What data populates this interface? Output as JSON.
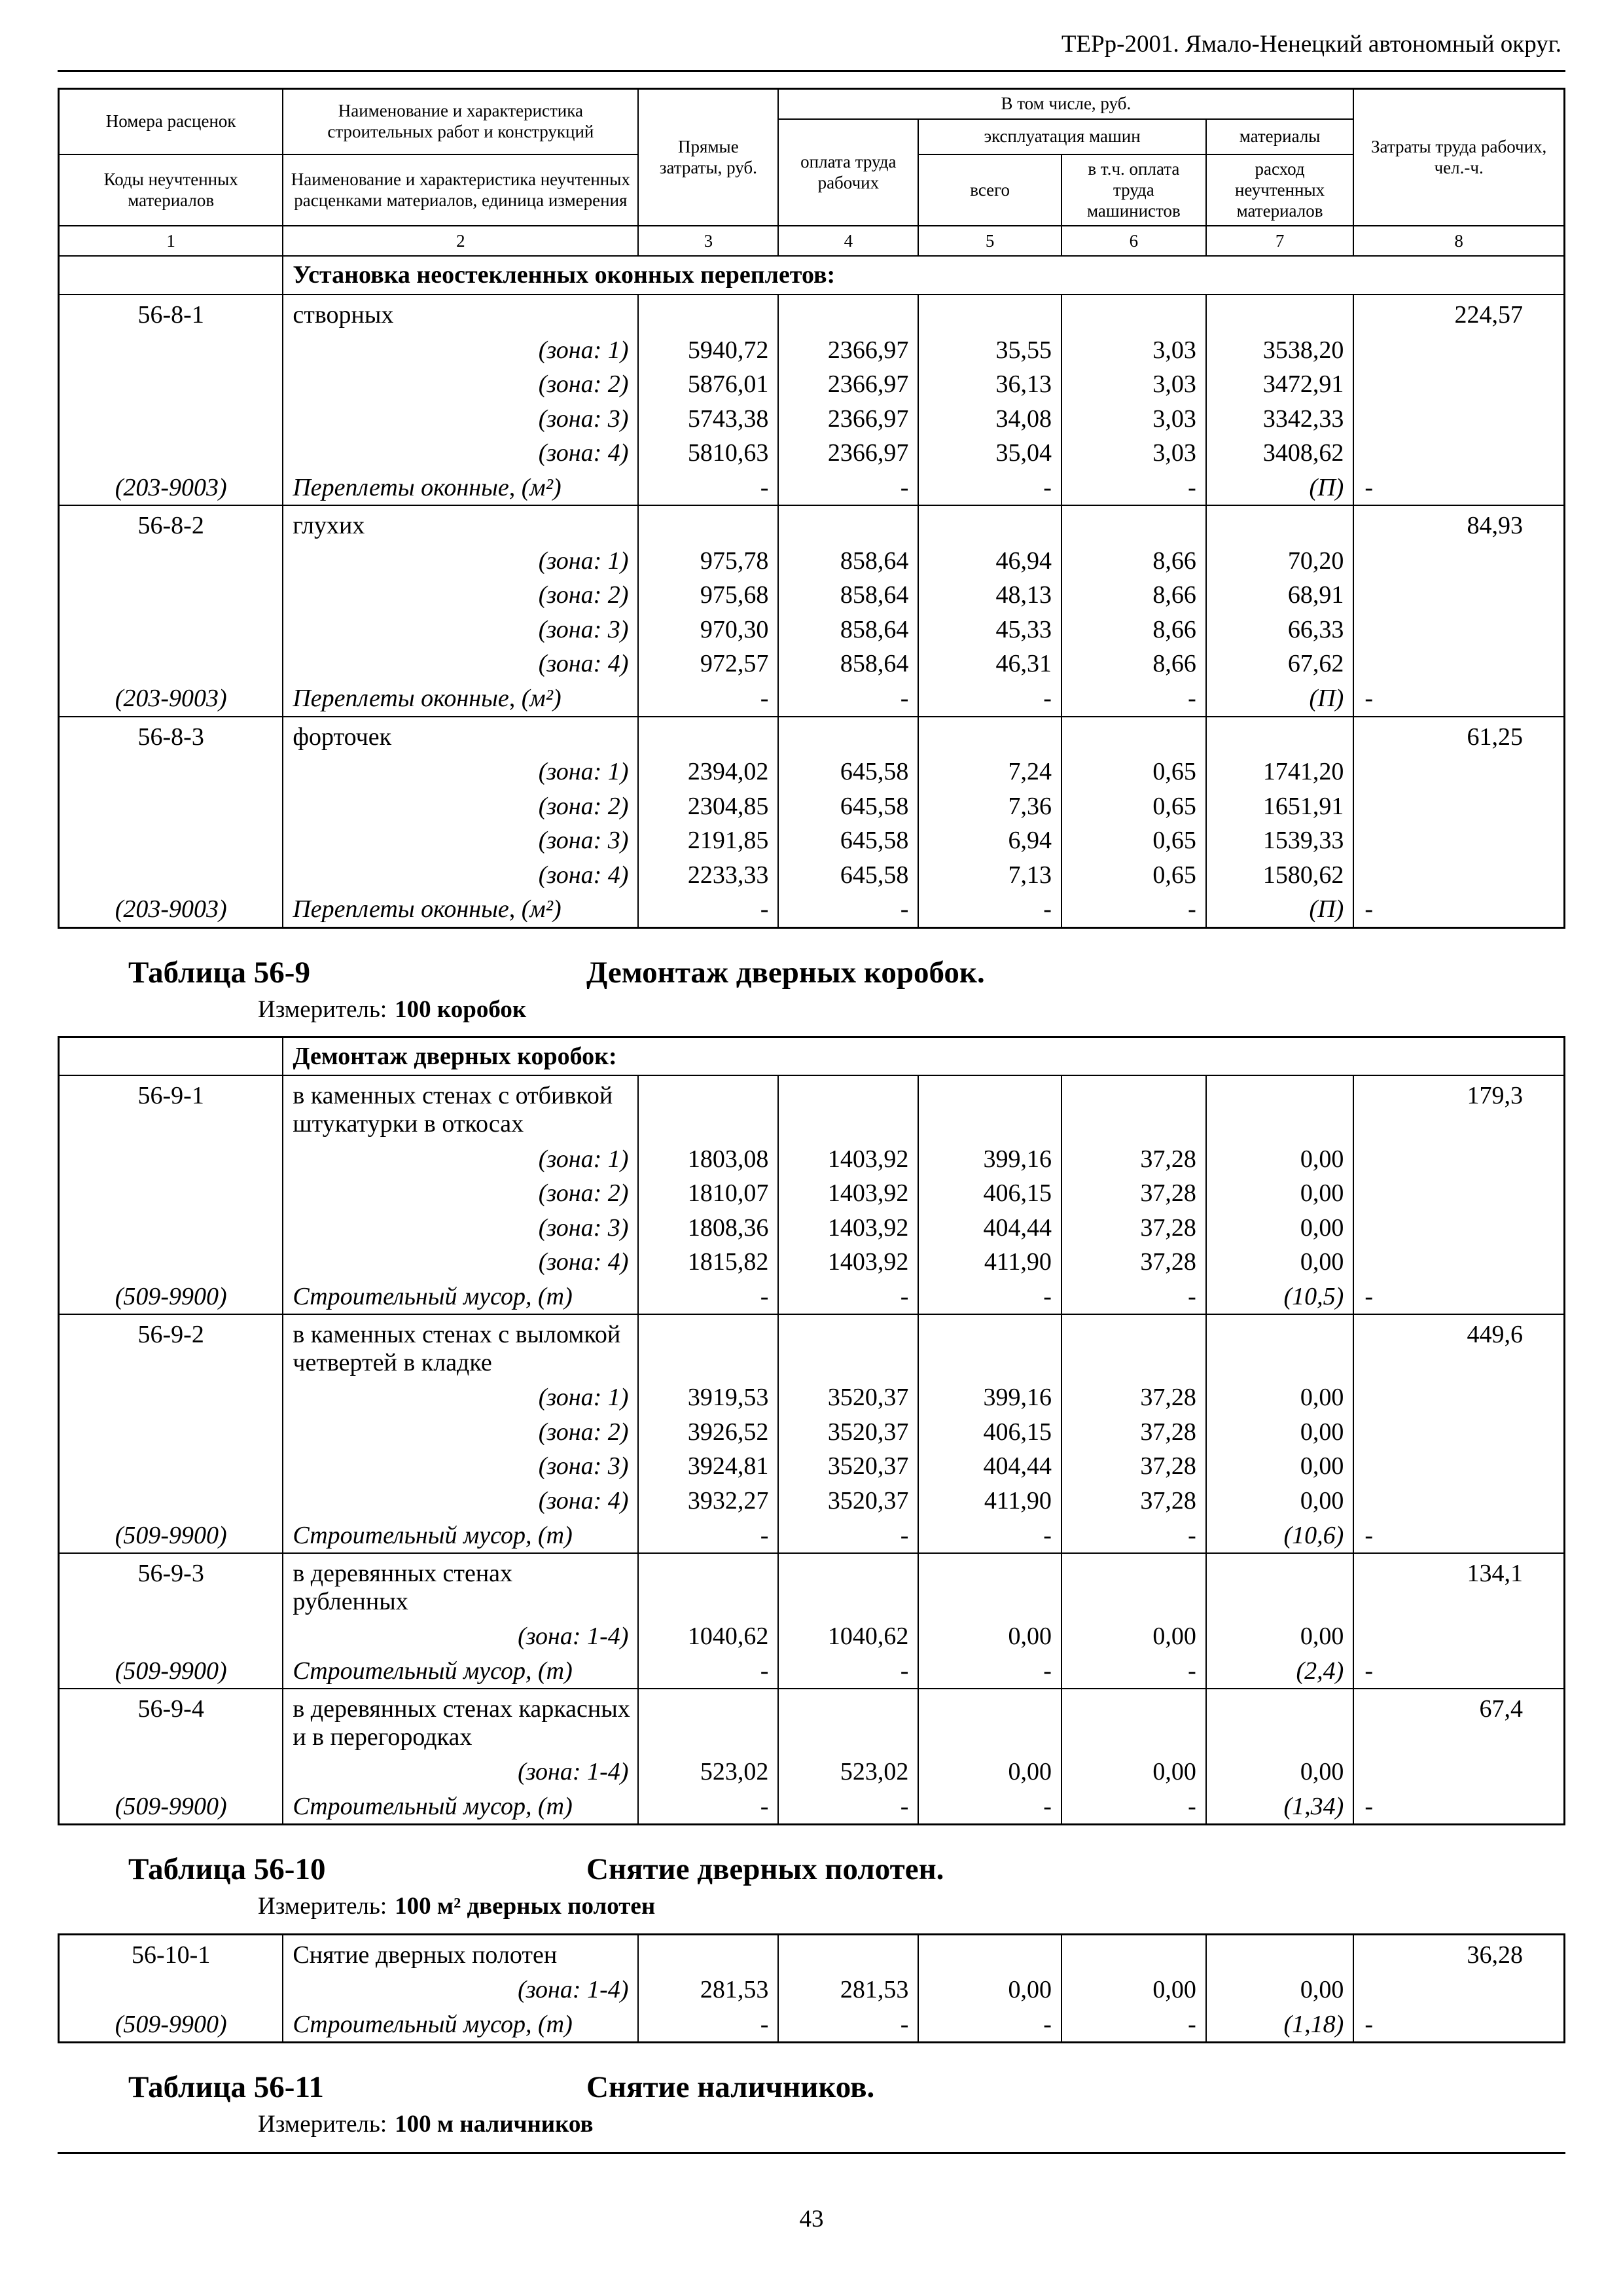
{
  "page": {
    "header_text": "ТЕРр-2001.  Ямало-Ненецкий автономный округ.",
    "page_number": "43"
  },
  "table_header": {
    "in_total": "В том числе, руб.",
    "col_rate_number": "Номера расценок",
    "col_rate_codes": "Коды неучтенных материалов",
    "col_work_name": "Наименование и характеристика строительных работ и конструкций",
    "col_material_name": "Наименование и характеристика неучтенных расценками материалов, единица измерения",
    "col_direct_costs": "Прямые затраты, руб.",
    "col_labor_pay": "оплата труда рабочих",
    "col_machines": "эксплуатация машин",
    "col_machines_total": "всего",
    "col_machinists": "в т.ч. оплата труда машинистов",
    "col_materials": "материалы",
    "col_materials_expense": "расход неучтенных материалов",
    "col_labor_costs": "Затраты труда рабочих, чел.-ч.",
    "column_numbers": [
      "1",
      "2",
      "3",
      "4",
      "5",
      "6",
      "7",
      "8"
    ]
  },
  "titles": [
    {
      "number": "Таблица 56-9",
      "title": "Демонтаж дверных коробок.",
      "measure_label": "Измеритель:",
      "measure_value": "100 коробок"
    },
    {
      "number": "Таблица 56-10",
      "title": "Снятие дверных полотен.",
      "measure_label": "Измеритель:",
      "measure_value": "100 м² дверных полотен"
    },
    {
      "number": "Таблица 56-11",
      "title": "Снятие наличников.",
      "measure_label": "Измеритель:",
      "measure_value": "100 м наличников"
    }
  ],
  "blocks": [
    {
      "table_id": "tb0",
      "rows": [
        {
          "type": "section",
          "text": "Установка неостекленных оконных переплетов:"
        },
        {
          "type": "item",
          "code": "56-8-1",
          "name": "створных",
          "labor": "224,57"
        },
        {
          "type": "zone",
          "zone": "(зона: 1)",
          "direct": "5940,72",
          "labor_pay": "2366,97",
          "machines": "35,55",
          "machinists": "3,03",
          "materials": "3538,20"
        },
        {
          "type": "zone",
          "zone": "(зона: 2)",
          "direct": "5876,01",
          "labor_pay": "2366,97",
          "machines": "36,13",
          "machinists": "3,03",
          "materials": "3472,91"
        },
        {
          "type": "zone",
          "zone": "(зона: 3)",
          "direct": "5743,38",
          "labor_pay": "2366,97",
          "machines": "34,08",
          "machinists": "3,03",
          "materials": "3342,33"
        },
        {
          "type": "zone",
          "zone": "(зона: 4)",
          "direct": "5810,63",
          "labor_pay": "2366,97",
          "machines": "35,04",
          "machinists": "3,03",
          "materials": "3408,62"
        },
        {
          "type": "material",
          "code": "(203-9003)",
          "name": "Переплеты оконные, (м²)",
          "direct": "-",
          "labor_pay": "-",
          "machines": "-",
          "machinists": "-",
          "materials": "(П)",
          "labor": "-"
        },
        {
          "type": "item",
          "code": "56-8-2",
          "name": "глухих",
          "labor": "84,93"
        },
        {
          "type": "zone",
          "zone": "(зона: 1)",
          "direct": "975,78",
          "labor_pay": "858,64",
          "machines": "46,94",
          "machinists": "8,66",
          "materials": "70,20"
        },
        {
          "type": "zone",
          "zone": "(зона: 2)",
          "direct": "975,68",
          "labor_pay": "858,64",
          "machines": "48,13",
          "machinists": "8,66",
          "materials": "68,91"
        },
        {
          "type": "zone",
          "zone": "(зона: 3)",
          "direct": "970,30",
          "labor_pay": "858,64",
          "machines": "45,33",
          "machinists": "8,66",
          "materials": "66,33"
        },
        {
          "type": "zone",
          "zone": "(зона: 4)",
          "direct": "972,57",
          "labor_pay": "858,64",
          "machines": "46,31",
          "machinists": "8,66",
          "materials": "67,62"
        },
        {
          "type": "material",
          "code": "(203-9003)",
          "name": "Переплеты оконные, (м²)",
          "direct": "-",
          "labor_pay": "-",
          "machines": "-",
          "machinists": "-",
          "materials": "(П)",
          "labor": "-"
        },
        {
          "type": "item",
          "code": "56-8-3",
          "name": "форточек",
          "labor": "61,25"
        },
        {
          "type": "zone",
          "zone": "(зона: 1)",
          "direct": "2394,02",
          "labor_pay": "645,58",
          "machines": "7,24",
          "machinists": "0,65",
          "materials": "1741,20"
        },
        {
          "type": "zone",
          "zone": "(зона: 2)",
          "direct": "2304,85",
          "labor_pay": "645,58",
          "machines": "7,36",
          "machinists": "0,65",
          "materials": "1651,91"
        },
        {
          "type": "zone",
          "zone": "(зона: 3)",
          "direct": "2191,85",
          "labor_pay": "645,58",
          "machines": "6,94",
          "machinists": "0,65",
          "materials": "1539,33"
        },
        {
          "type": "zone",
          "zone": "(зона: 4)",
          "direct": "2233,33",
          "labor_pay": "645,58",
          "machines": "7,13",
          "machinists": "0,65",
          "materials": "1580,62"
        },
        {
          "type": "material",
          "code": "(203-9003)",
          "name": "Переплеты оконные, (м²)",
          "direct": "-",
          "labor_pay": "-",
          "machines": "-",
          "machinists": "-",
          "materials": "(П)",
          "labor": "-"
        }
      ]
    },
    {
      "table_id": "tb1",
      "rows": [
        {
          "type": "section",
          "text": "Демонтаж дверных коробок:"
        },
        {
          "type": "item",
          "code": "56-9-1",
          "name": "в каменных стенах с отбивкой штукатурки в откосах",
          "labor": "179,3"
        },
        {
          "type": "zone",
          "zone": "(зона: 1)",
          "direct": "1803,08",
          "labor_pay": "1403,92",
          "machines": "399,16",
          "machinists": "37,28",
          "materials": "0,00"
        },
        {
          "type": "zone",
          "zone": "(зона: 2)",
          "direct": "1810,07",
          "labor_pay": "1403,92",
          "machines": "406,15",
          "machinists": "37,28",
          "materials": "0,00"
        },
        {
          "type": "zone",
          "zone": "(зона: 3)",
          "direct": "1808,36",
          "labor_pay": "1403,92",
          "machines": "404,44",
          "machinists": "37,28",
          "materials": "0,00"
        },
        {
          "type": "zone",
          "zone": "(зона: 4)",
          "direct": "1815,82",
          "labor_pay": "1403,92",
          "machines": "411,90",
          "machinists": "37,28",
          "materials": "0,00"
        },
        {
          "type": "material",
          "code": "(509-9900)",
          "name": "Строительный мусор, (т)",
          "direct": "-",
          "labor_pay": "-",
          "machines": "-",
          "machinists": "-",
          "materials": "(10,5)",
          "labor": "-"
        },
        {
          "type": "item",
          "code": "56-9-2",
          "name": "в каменных стенах с выломкой четвертей в кладке",
          "labor": "449,6"
        },
        {
          "type": "zone",
          "zone": "(зона: 1)",
          "direct": "3919,53",
          "labor_pay": "3520,37",
          "machines": "399,16",
          "machinists": "37,28",
          "materials": "0,00"
        },
        {
          "type": "zone",
          "zone": "(зона: 2)",
          "direct": "3926,52",
          "labor_pay": "3520,37",
          "machines": "406,15",
          "machinists": "37,28",
          "materials": "0,00"
        },
        {
          "type": "zone",
          "zone": "(зона: 3)",
          "direct": "3924,81",
          "labor_pay": "3520,37",
          "machines": "404,44",
          "machinists": "37,28",
          "materials": "0,00"
        },
        {
          "type": "zone",
          "zone": "(зона: 4)",
          "direct": "3932,27",
          "labor_pay": "3520,37",
          "machines": "411,90",
          "machinists": "37,28",
          "materials": "0,00"
        },
        {
          "type": "material",
          "code": "(509-9900)",
          "name": "Строительный мусор, (т)",
          "direct": "-",
          "labor_pay": "-",
          "machines": "-",
          "machinists": "-",
          "materials": "(10,6)",
          "labor": "-"
        },
        {
          "type": "item",
          "code": "56-9-3",
          "name": "в деревянных стенах рубленных",
          "labor": "134,1"
        },
        {
          "type": "zone",
          "zone": "(зона: 1-4)",
          "direct": "1040,62",
          "labor_pay": "1040,62",
          "machines": "0,00",
          "machinists": "0,00",
          "materials": "0,00"
        },
        {
          "type": "material",
          "code": "(509-9900)",
          "name": "Строительный мусор, (т)",
          "direct": "-",
          "labor_pay": "-",
          "machines": "-",
          "machinists": "-",
          "materials": "(2,4)",
          "labor": "-"
        },
        {
          "type": "item",
          "code": "56-9-4",
          "name": "в деревянных стенах каркасных и в перегородках",
          "labor": "67,4"
        },
        {
          "type": "zone",
          "zone": "(зона: 1-4)",
          "direct": "523,02",
          "labor_pay": "523,02",
          "machines": "0,00",
          "machinists": "0,00",
          "materials": "0,00"
        },
        {
          "type": "material",
          "code": "(509-9900)",
          "name": "Строительный мусор, (т)",
          "direct": "-",
          "labor_pay": "-",
          "machines": "-",
          "machinists": "-",
          "materials": "(1,34)",
          "labor": "-"
        }
      ]
    },
    {
      "table_id": "tb2",
      "rows": [
        {
          "type": "item",
          "code": "56-10-1",
          "name": "Снятие дверных полотен",
          "labor": "36,28"
        },
        {
          "type": "zone",
          "zone": "(зона: 1-4)",
          "direct": "281,53",
          "labor_pay": "281,53",
          "machines": "0,00",
          "machinists": "0,00",
          "materials": "0,00"
        },
        {
          "type": "material",
          "code": "(509-9900)",
          "name": "Строительный мусор, (т)",
          "direct": "-",
          "labor_pay": "-",
          "machines": "-",
          "machinists": "-",
          "materials": "(1,18)",
          "labor": "-"
        }
      ]
    }
  ]
}
